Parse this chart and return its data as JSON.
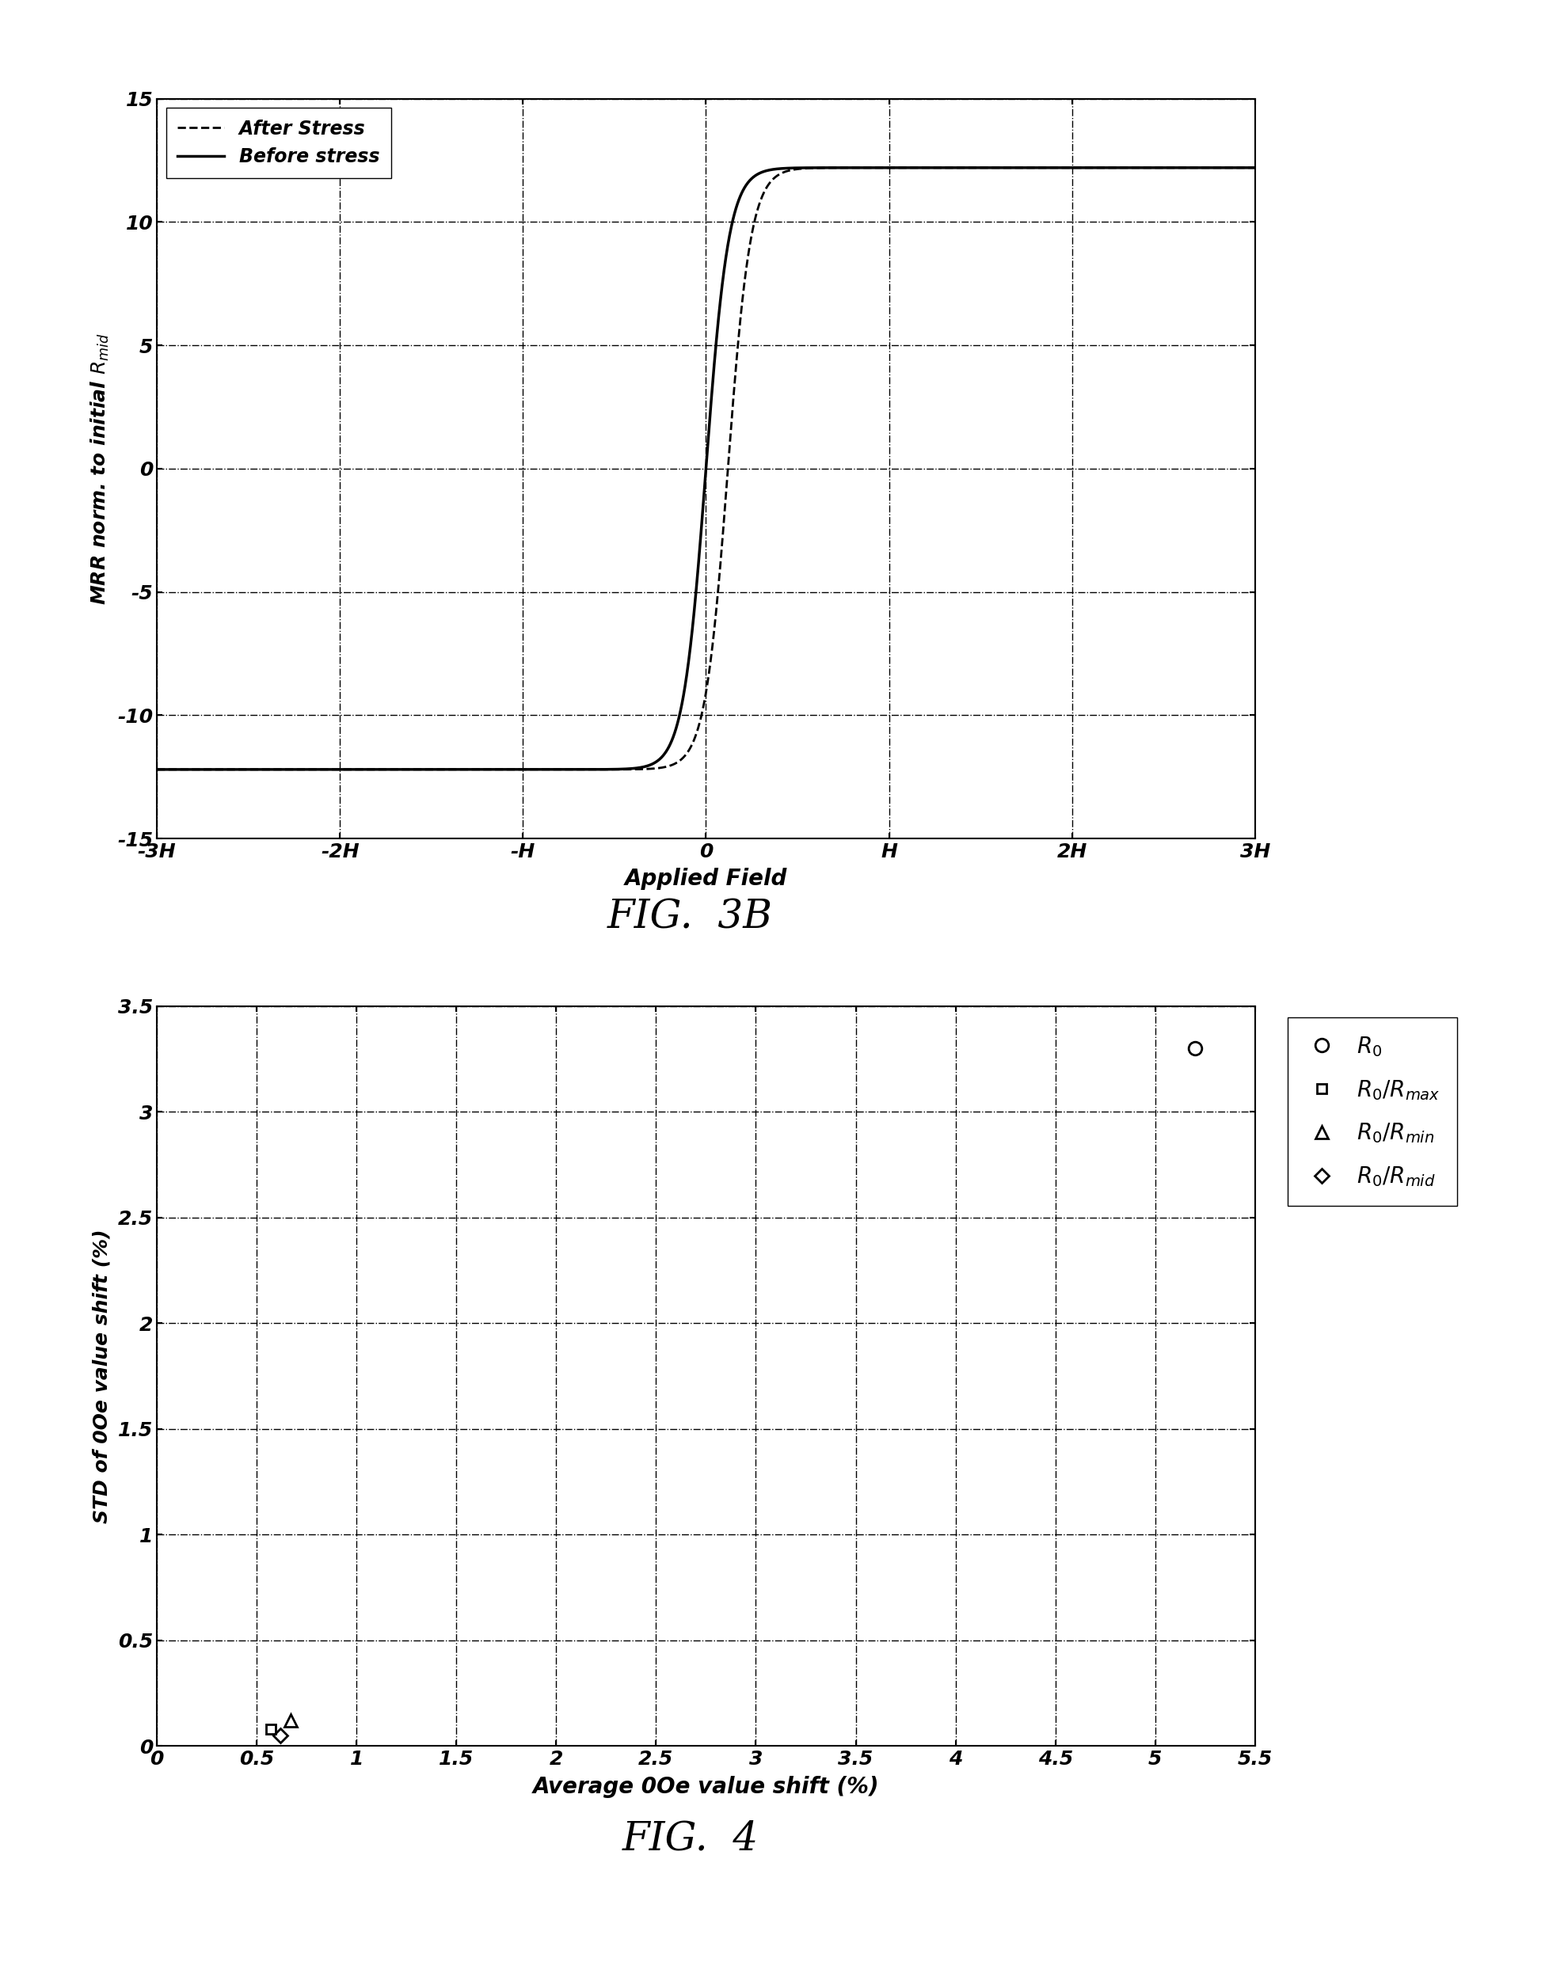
{
  "fig3b": {
    "ylabel": "MRR norm. to initial $R_{mid}$",
    "xlabel": "Applied Field",
    "xlim": [
      -3,
      3
    ],
    "ylim": [
      -15,
      15
    ],
    "xticks": [
      -3,
      -2,
      -1,
      0,
      1,
      2,
      3
    ],
    "xticklabels": [
      "-3H",
      "-2H",
      "-H",
      "0",
      "H",
      "2H",
      "3H"
    ],
    "yticks": [
      -15,
      -10,
      -5,
      0,
      5,
      10,
      15
    ],
    "yticklabels": [
      "-15",
      "-10",
      "-5",
      "0",
      "5",
      "10",
      "15"
    ],
    "legend_before": "Before stress",
    "legend_after": "After Stress",
    "saturation": 12.2,
    "slope": 8.0,
    "shift_after": 0.12
  },
  "fig4": {
    "xlabel": "Average 0Oe value shift (%)",
    "ylabel": "STD of 0Oe value shift (%)",
    "xlim": [
      0,
      5.5
    ],
    "ylim": [
      0,
      3.5
    ],
    "xticks": [
      0,
      0.5,
      1,
      1.5,
      2,
      2.5,
      3,
      3.5,
      4,
      4.5,
      5,
      5.5
    ],
    "xticklabels": [
      "0",
      "0.5",
      "1",
      "1.5",
      "2",
      "2.5",
      "3",
      "3.5",
      "4",
      "4.5",
      "5",
      "5.5"
    ],
    "yticks": [
      0,
      0.5,
      1,
      1.5,
      2,
      2.5,
      3,
      3.5
    ],
    "yticklabels": [
      "0",
      "0.5",
      "1",
      "1.5",
      "2",
      "2.5",
      "3",
      "3.5"
    ],
    "R0_x": 5.2,
    "R0_y": 3.3,
    "R0Rmax_x": 0.57,
    "R0Rmax_y": 0.08,
    "R0Rmin_x": 0.67,
    "R0Rmin_y": 0.12,
    "R0Rmid_x": 0.62,
    "R0Rmid_y": 0.05,
    "legend_R0": "$R_0$",
    "legend_R0Rmax": "$R_0/R_{max}$",
    "legend_R0Rmin": "$R_0/R_{min}$",
    "legend_R0Rmid": "$R_0/R_{mid}$"
  },
  "caption1": "FIG.  3B",
  "caption2": "FIG.  4",
  "background_color": "#ffffff"
}
